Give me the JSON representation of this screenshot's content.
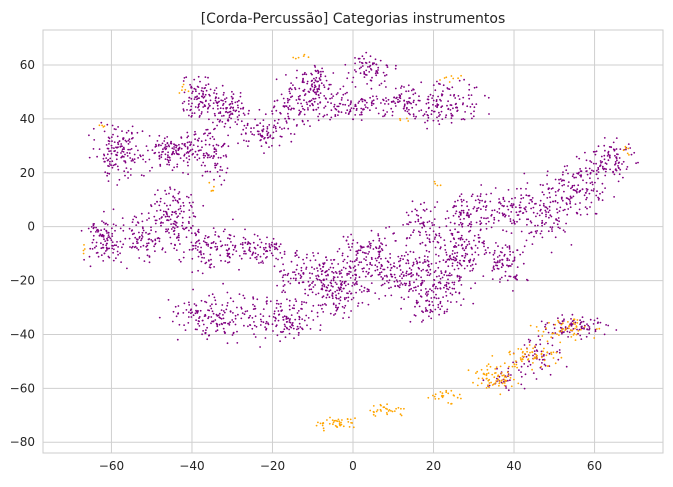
{
  "chart_data": {
    "type": "scatter",
    "title": "[Corda-Percussão] Categorias instrumentos",
    "xlabel": "",
    "ylabel": "",
    "xlim": [
      -77,
      77
    ],
    "ylim": [
      -84,
      73
    ],
    "xticks": [
      -60,
      -40,
      -20,
      0,
      20,
      40,
      60
    ],
    "yticks": [
      -80,
      -60,
      -40,
      -20,
      0,
      20,
      40,
      60
    ],
    "grid": true,
    "legend": "none",
    "colors": {
      "corda": "#800080",
      "percussao": "#ffa500"
    },
    "series": [
      {
        "color": "#800080",
        "clusters": [
          {
            "c": [
              -58,
              28
            ],
            "r": [
              6,
              8
            ],
            "n": 150
          },
          {
            "c": [
              -45,
              28
            ],
            "r": [
              5,
              6
            ],
            "n": 110
          },
          {
            "c": [
              -36,
              28
            ],
            "r": [
              5,
              9
            ],
            "n": 110
          },
          {
            "c": [
              -38,
              47
            ],
            "r": [
              5,
              7
            ],
            "n": 110
          },
          {
            "c": [
              -30,
              43
            ],
            "r": [
              4,
              6
            ],
            "n": 80
          },
          {
            "c": [
              -22,
              35
            ],
            "r": [
              5,
              6
            ],
            "n": 80
          },
          {
            "c": [
              -14,
              47
            ],
            "r": [
              5,
              9
            ],
            "n": 110
          },
          {
            "c": [
              -9,
              52
            ],
            "r": [
              3,
              8
            ],
            "n": 80
          },
          {
            "c": [
              0,
              45
            ],
            "r": [
              8,
              5
            ],
            "n": 100
          },
          {
            "c": [
              4,
              58
            ],
            "r": [
              5,
              5
            ],
            "n": 70
          },
          {
            "c": [
              13,
              46
            ],
            "r": [
              7,
              5
            ],
            "n": 90
          },
          {
            "c": [
              24,
              47
            ],
            "r": [
              7,
              8
            ],
            "n": 110
          },
          {
            "c": [
              -62,
              -5
            ],
            "r": [
              4,
              8
            ],
            "n": 110
          },
          {
            "c": [
              -52,
              -5
            ],
            "r": [
              4,
              8
            ],
            "n": 80
          },
          {
            "c": [
              -44,
              3
            ],
            "r": [
              5,
              10
            ],
            "n": 140
          },
          {
            "c": [
              -36,
              -8
            ],
            "r": [
              6,
              8
            ],
            "n": 100
          },
          {
            "c": [
              -24,
              -8
            ],
            "r": [
              7,
              5
            ],
            "n": 100
          },
          {
            "c": [
              -8,
              -18
            ],
            "r": [
              10,
              9
            ],
            "n": 190
          },
          {
            "c": [
              -35,
              -33
            ],
            "r": [
              9,
              8
            ],
            "n": 160
          },
          {
            "c": [
              -18,
              -34
            ],
            "r": [
              8,
              7
            ],
            "n": 140
          },
          {
            "c": [
              -3,
              -25
            ],
            "r": [
              6,
              8
            ],
            "n": 90
          },
          {
            "c": [
              5,
              -12
            ],
            "r": [
              7,
              10
            ],
            "n": 150
          },
          {
            "c": [
              14,
              -18
            ],
            "r": [
              7,
              8
            ],
            "n": 120
          },
          {
            "c": [
              19,
              -27
            ],
            "r": [
              5,
              7
            ],
            "n": 80
          },
          {
            "c": [
              24,
              -17
            ],
            "r": [
              5,
              10
            ],
            "n": 100
          },
          {
            "c": [
              17,
              0
            ],
            "r": [
              4,
              9
            ],
            "n": 70
          },
          {
            "c": [
              30,
              6
            ],
            "r": [
              6,
              8
            ],
            "n": 110
          },
          {
            "c": [
              28,
              -10
            ],
            "r": [
              6,
              8
            ],
            "n": 100
          },
          {
            "c": [
              40,
              6
            ],
            "r": [
              5,
              6
            ],
            "n": 70
          },
          {
            "c": [
              38,
              -12
            ],
            "r": [
              4,
              8
            ],
            "n": 80
          },
          {
            "c": [
              48,
              6
            ],
            "r": [
              6,
              11
            ],
            "n": 120
          },
          {
            "c": [
              57,
              15
            ],
            "r": [
              6,
              10
            ],
            "n": 120
          },
          {
            "c": [
              64,
              25
            ],
            "r": [
              5,
              6
            ],
            "n": 90
          },
          {
            "c": [
              55,
              -37
            ],
            "r": [
              8,
              4
            ],
            "n": 90
          },
          {
            "c": [
              46,
              -48
            ],
            "r": [
              6,
              6
            ],
            "n": 60
          },
          {
            "c": [
              38,
              -57
            ],
            "r": [
              5,
              3
            ],
            "n": 30
          }
        ]
      },
      {
        "color": "#ffa500",
        "clusters": [
          {
            "c": [
              -4,
              -73
            ],
            "r": [
              5,
              2
            ],
            "n": 40
          },
          {
            "c": [
              8,
              -68
            ],
            "r": [
              5,
              2
            ],
            "n": 30
          },
          {
            "c": [
              23,
              -63
            ],
            "r": [
              3,
              2
            ],
            "n": 25
          },
          {
            "c": [
              35,
              -56
            ],
            "r": [
              5,
              4
            ],
            "n": 70
          },
          {
            "c": [
              44,
              -48
            ],
            "r": [
              6,
              4
            ],
            "n": 60
          },
          {
            "c": [
              53,
              -38
            ],
            "r": [
              6,
              4
            ],
            "n": 50
          },
          {
            "c": [
              -42,
              51
            ],
            "r": [
              1,
              2
            ],
            "n": 6
          },
          {
            "c": [
              -13,
              63
            ],
            "r": [
              2,
              1
            ],
            "n": 6
          },
          {
            "c": [
              24,
              55
            ],
            "r": [
              3,
              1
            ],
            "n": 8
          },
          {
            "c": [
              68,
              28
            ],
            "r": [
              1,
              2
            ],
            "n": 6
          },
          {
            "c": [
              -35,
              14
            ],
            "r": [
              1,
              2
            ],
            "n": 5
          },
          {
            "c": [
              -62,
              37
            ],
            "r": [
              2,
              1
            ],
            "n": 4
          },
          {
            "c": [
              -66,
              -9
            ],
            "r": [
              1,
              2
            ],
            "n": 4
          },
          {
            "c": [
              12,
              40
            ],
            "r": [
              2,
              1
            ],
            "n": 4
          },
          {
            "c": [
              21,
              16
            ],
            "r": [
              1,
              1
            ],
            "n": 4
          }
        ]
      }
    ]
  }
}
